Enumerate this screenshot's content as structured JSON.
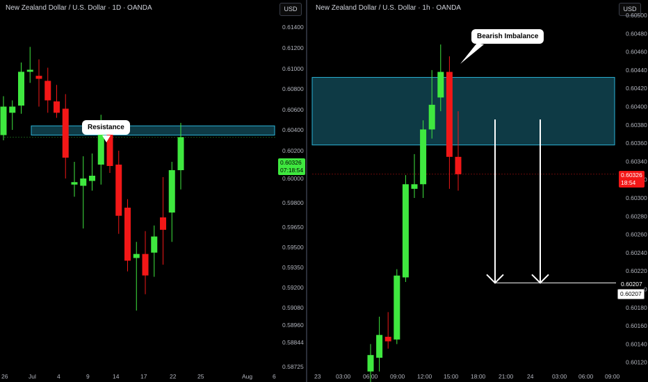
{
  "left_chart": {
    "title": "New Zealand Dollar / U.S. Dollar · 1D · OANDA",
    "currency_button": "USD",
    "annotation": "Resistance",
    "current_price": "0.60326",
    "countdown": "07:18:54",
    "colors": {
      "up": "#3fe83f",
      "down": "#f21717",
      "zone_fill": "#0e3a45",
      "zone_border": "#2bb3d6",
      "price_tag": "#3fe83f"
    }
  },
  "right_chart": {
    "title": "New Zealand Dollar / U.S. Dollar · 1h · OANDA",
    "currency_button": "USD",
    "annotation": "Bearish Imbalance",
    "current_price": "0.60326",
    "countdown": "18:54",
    "target_price": "0.60207",
    "target_price_box": "0.60207",
    "colors": {
      "up": "#3fe83f",
      "down": "#f21717",
      "zone_fill": "#0e3a45",
      "zone_border": "#2bb3d6",
      "price_tag": "#f21717"
    }
  },
  "chart_data": [
    {
      "type": "candlestick",
      "title": "New Zealand Dollar / U.S. Dollar · 1D · OANDA",
      "y_ticks": [
        "0.61400",
        "0.61200",
        "0.61000",
        "0.60800",
        "0.60600",
        "0.60400",
        "0.60200",
        "0.60000",
        "0.59800",
        "0.59650",
        "0.59500",
        "0.59350",
        "0.59200",
        "0.59080",
        "0.58960",
        "0.58844",
        "0.58725"
      ],
      "x_ticks": [
        "26",
        "Jul",
        "4",
        "9",
        "14",
        "17",
        "22",
        "25",
        "Aug",
        "6"
      ],
      "resistance_zone": [
        0.6035,
        0.6044
      ],
      "candles": [
        {
          "o": 0.6035,
          "h": 0.6073,
          "l": 0.603,
          "c": 0.6063
        },
        {
          "o": 0.6057,
          "h": 0.6069,
          "l": 0.604,
          "c": 0.6063
        },
        {
          "o": 0.6064,
          "h": 0.6106,
          "l": 0.6056,
          "c": 0.6097
        },
        {
          "o": 0.6097,
          "h": 0.6121,
          "l": 0.6086,
          "c": 0.6099
        },
        {
          "o": 0.6093,
          "h": 0.6109,
          "l": 0.6063,
          "c": 0.609
        },
        {
          "o": 0.6088,
          "h": 0.6101,
          "l": 0.6057,
          "c": 0.6069
        },
        {
          "o": 0.6068,
          "h": 0.6084,
          "l": 0.6052,
          "c": 0.6057
        },
        {
          "o": 0.6061,
          "h": 0.6075,
          "l": 0.6,
          "c": 0.6015
        },
        {
          "o": 0.5995,
          "h": 0.6012,
          "l": 0.5985,
          "c": 0.5997
        },
        {
          "o": 0.5994,
          "h": 0.6016,
          "l": 0.5964,
          "c": 0.6
        },
        {
          "o": 0.5998,
          "h": 0.6018,
          "l": 0.599,
          "c": 0.6002
        },
        {
          "o": 0.601,
          "h": 0.6055,
          "l": 0.5995,
          "c": 0.6041
        },
        {
          "o": 0.6039,
          "h": 0.6048,
          "l": 0.6004,
          "c": 0.6009
        },
        {
          "o": 0.601,
          "h": 0.602,
          "l": 0.596,
          "c": 0.5972
        },
        {
          "o": 0.5977,
          "h": 0.5983,
          "l": 0.5932,
          "c": 0.594
        },
        {
          "o": 0.5942,
          "h": 0.5954,
          "l": 0.5906,
          "c": 0.5945
        },
        {
          "o": 0.5945,
          "h": 0.5962,
          "l": 0.5916,
          "c": 0.5929
        },
        {
          "o": 0.5946,
          "h": 0.5966,
          "l": 0.5928,
          "c": 0.5958
        },
        {
          "o": 0.5971,
          "h": 0.6001,
          "l": 0.5937,
          "c": 0.5963
        },
        {
          "o": 0.5974,
          "h": 0.6012,
          "l": 0.5954,
          "c": 0.6006
        },
        {
          "o": 0.6006,
          "h": 0.6047,
          "l": 0.5991,
          "c": 0.6033
        }
      ]
    },
    {
      "type": "candlestick",
      "title": "New Zealand Dollar / U.S. Dollar · 1h · OANDA",
      "y_ticks": [
        "0.60500",
        "0.60480",
        "0.60460",
        "0.60440",
        "0.60420",
        "0.60400",
        "0.60380",
        "0.60360",
        "0.60340",
        "0.60320",
        "0.60300",
        "0.60280",
        "0.60260",
        "0.60240",
        "0.60220",
        "0.60200",
        "0.60180",
        "0.60160",
        "0.60140",
        "0.60120"
      ],
      "x_ticks": [
        "23",
        "03:00",
        "06:00",
        "09:00",
        "12:00",
        "15:00",
        "18:00",
        "21:00",
        "24",
        "03:00",
        "06:00",
        "09:00"
      ],
      "imbalance_zone": [
        0.60358,
        0.60432
      ],
      "target_level": 0.60207,
      "candles": [
        {
          "o": 0.6011,
          "h": 0.6014,
          "l": 0.60095,
          "c": 0.60128
        },
        {
          "o": 0.60125,
          "h": 0.6017,
          "l": 0.6011,
          "c": 0.6015
        },
        {
          "o": 0.60148,
          "h": 0.60175,
          "l": 0.60135,
          "c": 0.60143
        },
        {
          "o": 0.60145,
          "h": 0.60222,
          "l": 0.6014,
          "c": 0.60215
        },
        {
          "o": 0.60213,
          "h": 0.60325,
          "l": 0.60208,
          "c": 0.60315
        },
        {
          "o": 0.6031,
          "h": 0.60348,
          "l": 0.603,
          "c": 0.60315
        },
        {
          "o": 0.60315,
          "h": 0.60385,
          "l": 0.603,
          "c": 0.60375
        },
        {
          "o": 0.60375,
          "h": 0.6044,
          "l": 0.60365,
          "c": 0.60402
        },
        {
          "o": 0.6041,
          "h": 0.60468,
          "l": 0.60395,
          "c": 0.60438
        },
        {
          "o": 0.60438,
          "h": 0.60455,
          "l": 0.6031,
          "c": 0.60345
        },
        {
          "o": 0.60345,
          "h": 0.60395,
          "l": 0.60308,
          "c": 0.60326
        }
      ]
    }
  ]
}
